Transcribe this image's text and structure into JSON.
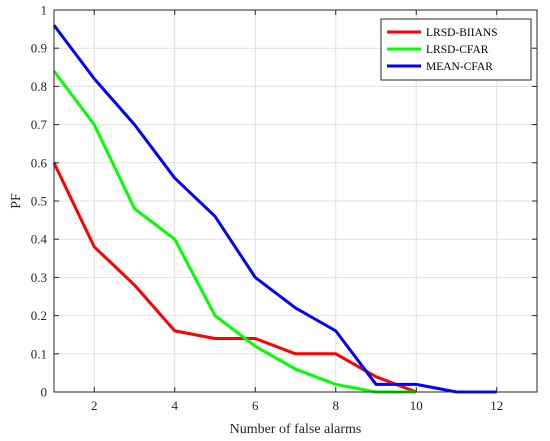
{
  "chart_data": {
    "type": "line",
    "title": "",
    "xlabel": "Number of false alarms",
    "ylabel": "PF",
    "xlim": [
      1,
      13
    ],
    "ylim": [
      0,
      1
    ],
    "xticks": [
      2,
      4,
      6,
      8,
      10,
      12
    ],
    "yticks": [
      0,
      0.1,
      0.2,
      0.3,
      0.4,
      0.5,
      0.6,
      0.7,
      0.8,
      0.9,
      1
    ],
    "ytick_labels": [
      "0",
      "0.1",
      "0.2",
      "0.3",
      "0.4",
      "0.5",
      "0.6",
      "0.7",
      "0.8",
      "0.9",
      "1"
    ],
    "grid": true,
    "legend_position": "top-right",
    "series": [
      {
        "name": "LRSD-BIIANS",
        "color": "#ff0000",
        "x": [
          1,
          2,
          3,
          4,
          5,
          6,
          7,
          8,
          9,
          10
        ],
        "y": [
          0.6,
          0.38,
          0.28,
          0.16,
          0.14,
          0.14,
          0.1,
          0.1,
          0.04,
          0.0
        ]
      },
      {
        "name": "LRSD-CFAR",
        "color": "#00ff00",
        "x": [
          1,
          2,
          3,
          4,
          5,
          6,
          7,
          8,
          9,
          10
        ],
        "y": [
          0.84,
          0.7,
          0.48,
          0.4,
          0.2,
          0.12,
          0.06,
          0.02,
          0.0,
          0.0
        ]
      },
      {
        "name": "MEAN-CFAR",
        "color": "#0000ff",
        "x": [
          1,
          2,
          3,
          4,
          5,
          6,
          7,
          8,
          9,
          10,
          11,
          12
        ],
        "y": [
          0.96,
          0.82,
          0.7,
          0.56,
          0.46,
          0.3,
          0.22,
          0.16,
          0.02,
          0.02,
          0.0,
          0.0
        ]
      }
    ]
  }
}
